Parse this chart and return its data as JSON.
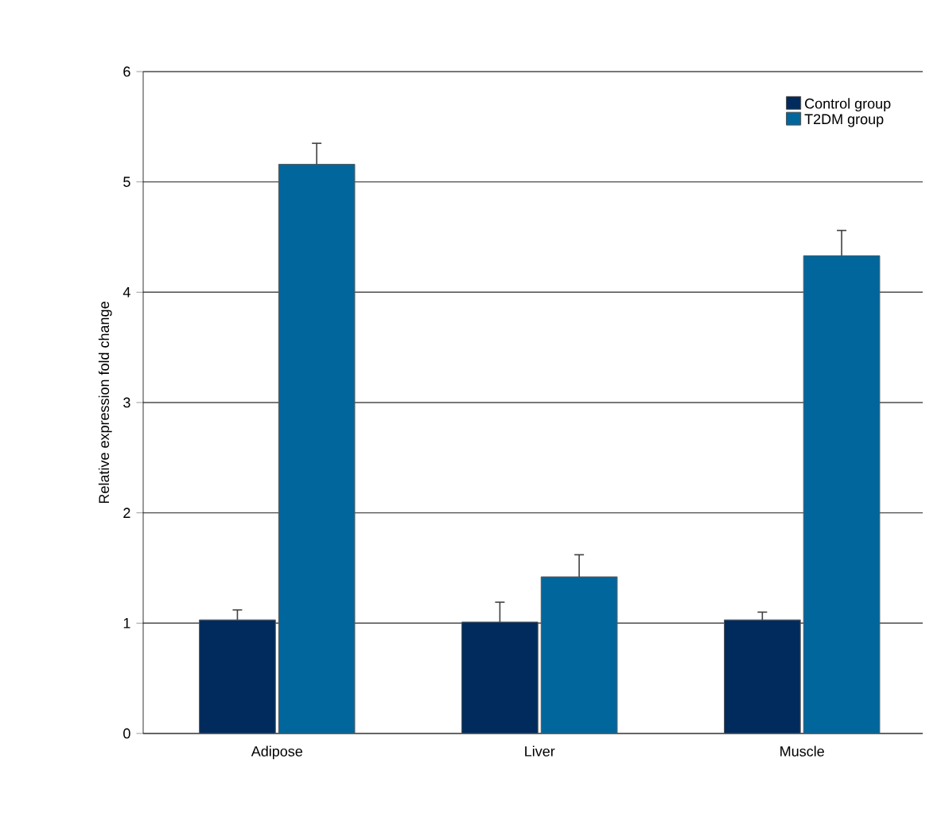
{
  "chart_data": {
    "type": "bar",
    "ylabel": "Relative expression fold change",
    "categories": [
      "Adipose",
      "Liver",
      "Muscle"
    ],
    "series": [
      {
        "name": "Control group",
        "color": "#002b5c",
        "values": [
          1.03,
          1.01,
          1.03
        ],
        "errors": [
          0.09,
          0.18,
          0.07
        ]
      },
      {
        "name": "T2DM group",
        "color": "#00669c",
        "values": [
          5.16,
          1.42,
          4.33
        ],
        "errors": [
          0.19,
          0.2,
          0.23
        ]
      }
    ],
    "ylim": [
      0,
      6
    ],
    "yticks": [
      0,
      1,
      2,
      3,
      4,
      5,
      6
    ],
    "grid": "y",
    "legend": "top right"
  }
}
